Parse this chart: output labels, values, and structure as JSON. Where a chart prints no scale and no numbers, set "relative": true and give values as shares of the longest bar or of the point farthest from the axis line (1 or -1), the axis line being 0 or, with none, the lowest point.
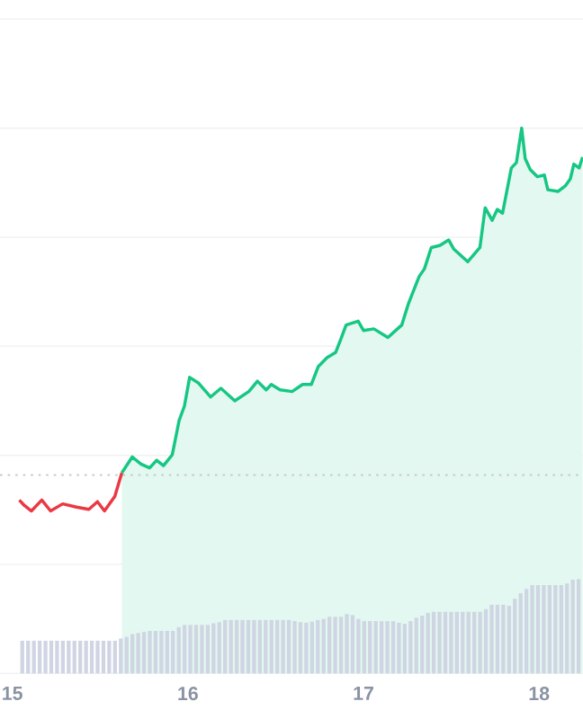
{
  "chart_data": {
    "type": "line",
    "relative": true,
    "grid": "y",
    "xlim": [
      14.93,
      18.25
    ],
    "xticks": [
      {
        "value": 15,
        "label": "15"
      },
      16,
      17,
      18
    ],
    "ref_lines": [
      {
        "axis": "y",
        "value": 0.364,
        "color": "#c8c8c8",
        "line_style": "dotted"
      }
    ],
    "series": [
      {
        "color": "#ea3943",
        "x": [
          15.04,
          15.069,
          15.109,
          15.168,
          15.218,
          15.287,
          15.366,
          15.436,
          15.485,
          15.525,
          15.584,
          15.624
        ],
        "values": [
          0.318,
          0.308,
          0.298,
          0.318,
          0.298,
          0.311,
          0.305,
          0.301,
          0.315,
          0.298,
          0.325,
          0.368
        ]
      },
      {
        "type": "area",
        "color": "#16c784",
        "x": [
          15.624,
          15.683,
          15.733,
          15.782,
          15.822,
          15.861,
          15.911,
          15.95,
          15.98,
          16.01,
          16.059,
          16.129,
          16.188,
          16.267,
          16.347,
          16.396,
          16.446,
          16.475,
          16.525,
          16.594,
          16.653,
          16.703,
          16.743,
          16.792,
          16.842,
          16.871,
          16.901,
          16.97,
          17.0,
          17.059,
          17.139,
          17.218,
          17.257,
          17.317,
          17.347,
          17.386,
          17.436,
          17.485,
          17.515,
          17.594,
          17.663,
          17.693,
          17.733,
          17.762,
          17.792,
          17.842,
          17.871,
          17.901,
          17.921,
          17.95,
          17.99,
          18.03,
          18.05,
          18.109,
          18.149,
          18.178,
          18.198,
          18.228,
          18.248
        ],
        "values": [
          0.368,
          0.397,
          0.384,
          0.377,
          0.391,
          0.381,
          0.401,
          0.464,
          0.49,
          0.543,
          0.533,
          0.507,
          0.523,
          0.5,
          0.517,
          0.536,
          0.52,
          0.53,
          0.52,
          0.517,
          0.53,
          0.53,
          0.563,
          0.579,
          0.589,
          0.613,
          0.639,
          0.646,
          0.629,
          0.632,
          0.616,
          0.639,
          0.679,
          0.728,
          0.742,
          0.781,
          0.785,
          0.795,
          0.778,
          0.755,
          0.781,
          0.854,
          0.831,
          0.851,
          0.844,
          0.927,
          0.937,
          1,
          0.944,
          0.924,
          0.911,
          0.914,
          0.887,
          0.884,
          0.894,
          0.907,
          0.934,
          0.927,
          0.947
        ]
      },
      {
        "type": "bar",
        "color": "#cfd5e3",
        "x": [
          15.057,
          15.09,
          15.123,
          15.156,
          15.189,
          15.222,
          15.255,
          15.288,
          15.321,
          15.354,
          15.387,
          15.42,
          15.453,
          15.486,
          15.519,
          15.552,
          15.585,
          15.618,
          15.651,
          15.684,
          15.717,
          15.75,
          15.783,
          15.816,
          15.849,
          15.882,
          15.915,
          15.948,
          15.981,
          16.014,
          16.047,
          16.08,
          16.113,
          16.146,
          16.179,
          16.212,
          16.245,
          16.278,
          16.311,
          16.344,
          16.377,
          16.41,
          16.443,
          16.476,
          16.509,
          16.542,
          16.575,
          16.608,
          16.641,
          16.674,
          16.707,
          16.74,
          16.773,
          16.806,
          16.839,
          16.872,
          16.905,
          16.938,
          16.971,
          17.004,
          17.037,
          17.07,
          17.103,
          17.136,
          17.169,
          17.202,
          17.235,
          17.268,
          17.301,
          17.334,
          17.367,
          17.4,
          17.433,
          17.466,
          17.499,
          17.532,
          17.565,
          17.598,
          17.631,
          17.664,
          17.697,
          17.73,
          17.763,
          17.796,
          17.829,
          17.862,
          17.895,
          17.928,
          17.961,
          17.994,
          18.027,
          18.06,
          18.093,
          18.126,
          18.159,
          18.192,
          18.225
        ],
        "values": [
          0.06,
          0.06,
          0.06,
          0.06,
          0.06,
          0.06,
          0.06,
          0.06,
          0.06,
          0.06,
          0.06,
          0.06,
          0.06,
          0.06,
          0.06,
          0.06,
          0.06,
          0.064,
          0.067,
          0.072,
          0.074,
          0.076,
          0.078,
          0.078,
          0.078,
          0.078,
          0.078,
          0.085,
          0.089,
          0.089,
          0.089,
          0.089,
          0.089,
          0.092,
          0.094,
          0.098,
          0.098,
          0.098,
          0.098,
          0.098,
          0.098,
          0.098,
          0.098,
          0.098,
          0.098,
          0.098,
          0.098,
          0.096,
          0.094,
          0.093,
          0.095,
          0.098,
          0.1,
          0.104,
          0.104,
          0.104,
          0.109,
          0.107,
          0.1,
          0.096,
          0.096,
          0.096,
          0.096,
          0.096,
          0.096,
          0.093,
          0.091,
          0.096,
          0.102,
          0.106,
          0.111,
          0.113,
          0.113,
          0.113,
          0.113,
          0.113,
          0.113,
          0.113,
          0.113,
          0.113,
          0.118,
          0.126,
          0.126,
          0.126,
          0.124,
          0.137,
          0.147,
          0.155,
          0.162,
          0.162,
          0.162,
          0.162,
          0.162,
          0.162,
          0.165,
          0.172,
          0.173
        ]
      }
    ]
  }
}
